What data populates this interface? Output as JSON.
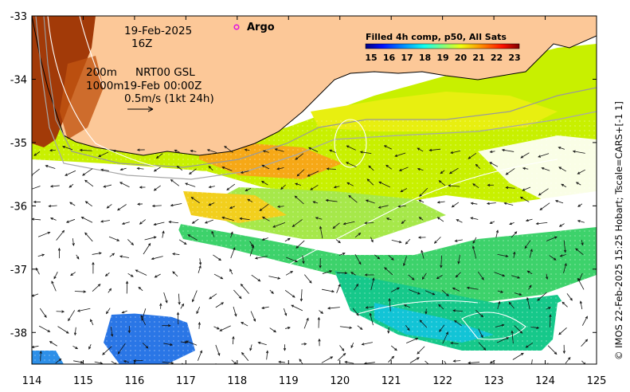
{
  "map": {
    "date_label": "19-Feb-2025",
    "time_label": "16Z",
    "depth_contours_label": "200m",
    "depth_contours_label_2": "1000m",
    "current_product_label": "NRT00 GSL",
    "current_time_label": "19-Feb 00:00Z",
    "vector_scale_label": "0.5m/s (1kt 24h)",
    "argo_label": "Argo",
    "side_credit": "© IMOS 22-Feb-2025 15:25 Hobart; Tscale=CARS+[-1 1]",
    "lon_range": [
      114,
      125
    ],
    "lat_range": [
      -38.5,
      -33
    ],
    "x_ticks": [
      "114",
      "115",
      "116",
      "117",
      "118",
      "119",
      "120",
      "121",
      "122",
      "123",
      "124",
      "125"
    ],
    "y_ticks": [
      "-33",
      "-34",
      "-35",
      "-36",
      "-37",
      "-38"
    ],
    "land_color": "#fcc898"
  },
  "colorbar": {
    "title": "Filled 4h comp, p50, All Sats",
    "labels": [
      "15",
      "16",
      "17",
      "18",
      "19",
      "20",
      "21",
      "22",
      "23"
    ],
    "colors": [
      "#00007f",
      "#0010ff",
      "#0090ff",
      "#10ffef",
      "#80ff80",
      "#efff10",
      "#ff9000",
      "#ff1000",
      "#7f0000"
    ]
  }
}
